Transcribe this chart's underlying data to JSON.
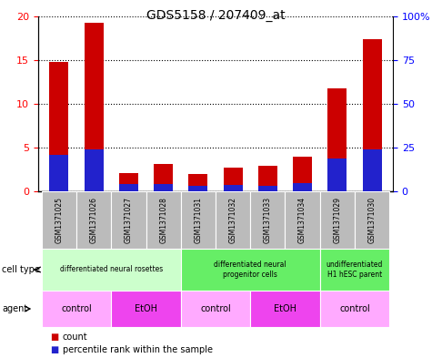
{
  "title": "GDS5158 / 207409_at",
  "samples": [
    "GSM1371025",
    "GSM1371026",
    "GSM1371027",
    "GSM1371028",
    "GSM1371031",
    "GSM1371032",
    "GSM1371033",
    "GSM1371034",
    "GSM1371029",
    "GSM1371030"
  ],
  "count_values": [
    14.8,
    19.3,
    2.1,
    3.1,
    2.0,
    2.7,
    2.9,
    4.0,
    11.8,
    17.4
  ],
  "percentile_values": [
    21,
    24,
    4,
    4,
    3,
    3.5,
    3,
    4.5,
    19,
    24
  ],
  "ylim_left": [
    0,
    20
  ],
  "ylim_right": [
    0,
    100
  ],
  "yticks_left": [
    0,
    5,
    10,
    15,
    20
  ],
  "yticks_right": [
    0,
    25,
    50,
    75,
    100
  ],
  "count_color": "#cc0000",
  "percentile_color": "#2222cc",
  "header_bg": "#bbbbbb",
  "cell_type_groups": [
    {
      "label": "differentiated neural rosettes",
      "cols": [
        0,
        3
      ],
      "color": "#ccffcc"
    },
    {
      "label": "differentiated neural\nprogenitor cells",
      "cols": [
        4,
        7
      ],
      "color": "#66ee66"
    },
    {
      "label": "undifferentiated\nH1 hESC parent",
      "cols": [
        8,
        9
      ],
      "color": "#66ee66"
    }
  ],
  "agent_groups": [
    {
      "label": "control",
      "cols": [
        0,
        1
      ],
      "color": "#ffaaff"
    },
    {
      "label": "EtOH",
      "cols": [
        2,
        3
      ],
      "color": "#ee44ee"
    },
    {
      "label": "control",
      "cols": [
        4,
        5
      ],
      "color": "#ffaaff"
    },
    {
      "label": "EtOH",
      "cols": [
        6,
        7
      ],
      "color": "#ee44ee"
    },
    {
      "label": "control",
      "cols": [
        8,
        9
      ],
      "color": "#ffaaff"
    }
  ]
}
